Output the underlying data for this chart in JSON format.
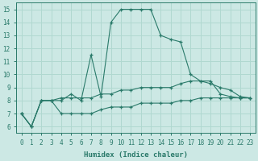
{
  "xlabel": "Humidex (Indice chaleur)",
  "xlim": [
    -0.5,
    23.5
  ],
  "ylim": [
    5.5,
    15.5
  ],
  "xticks": [
    0,
    1,
    2,
    3,
    4,
    5,
    6,
    7,
    8,
    9,
    10,
    11,
    12,
    13,
    14,
    15,
    16,
    17,
    18,
    19,
    20,
    21,
    22,
    23
  ],
  "yticks": [
    6,
    7,
    8,
    9,
    10,
    11,
    12,
    13,
    14,
    15
  ],
  "background_color": "#cce8e4",
  "grid_color": "#b0d8d0",
  "line_color": "#2a7a6a",
  "series_max": [
    7.0,
    6.0,
    8.0,
    8.0,
    8.0,
    8.5,
    8.0,
    11.5,
    8.3,
    14.0,
    15.0,
    15.0,
    15.0,
    15.0,
    13.0,
    12.7,
    12.5,
    10.0,
    9.5,
    9.5,
    8.5,
    8.3,
    8.2,
    8.2
  ],
  "series_mean": [
    7.0,
    6.0,
    8.0,
    8.0,
    8.2,
    8.2,
    8.2,
    8.2,
    8.5,
    8.5,
    8.8,
    8.8,
    9.0,
    9.0,
    9.0,
    9.0,
    9.3,
    9.5,
    9.5,
    9.3,
    9.0,
    8.8,
    8.3,
    8.2
  ],
  "series_min": [
    7.0,
    6.0,
    8.0,
    8.0,
    7.0,
    7.0,
    7.0,
    7.0,
    7.3,
    7.5,
    7.5,
    7.5,
    7.8,
    7.8,
    7.8,
    7.8,
    8.0,
    8.0,
    8.2,
    8.2,
    8.2,
    8.2,
    8.2,
    8.2
  ]
}
